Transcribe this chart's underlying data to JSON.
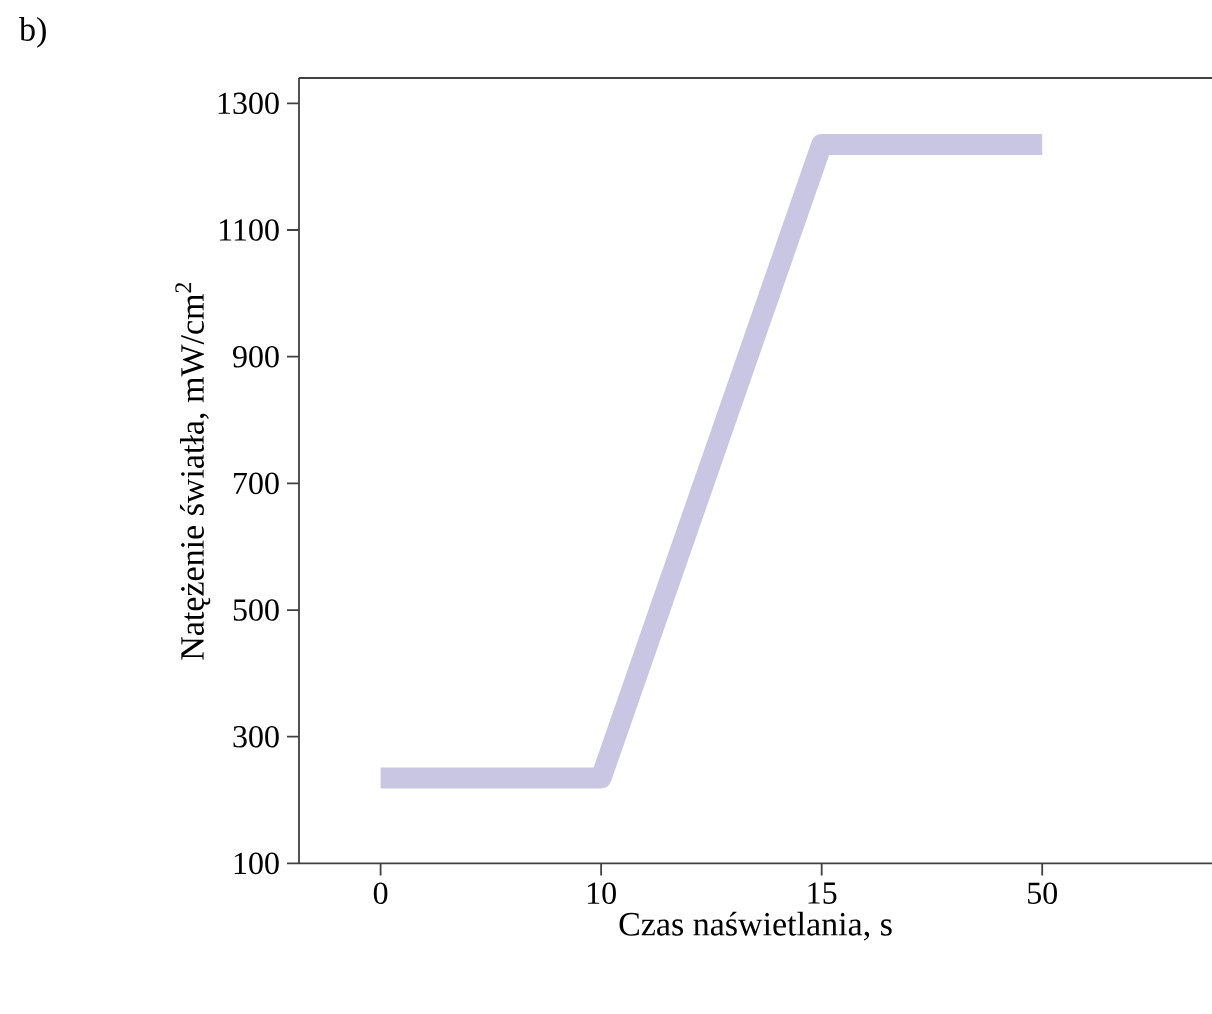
{
  "chart_data": {
    "type": "line",
    "xlabel": "Czas naświetlania, s",
    "ylabel": "Natężenie światła, mW/cm$^{2}$",
    "annotations": [
      "b)"
    ],
    "categories": [
      "0",
      "10",
      "15",
      "50"
    ],
    "series": [
      {
        "color": "#c8c6e2",
        "values": [
          235,
          235,
          1235,
          1235
        ]
      }
    ],
    "ylim": [
      100,
      1340
    ],
    "yticks": [
      100,
      300,
      500,
      700,
      900,
      1100,
      1300
    ],
    "grid": false,
    "marker": "none",
    "line_style": "solid"
  }
}
